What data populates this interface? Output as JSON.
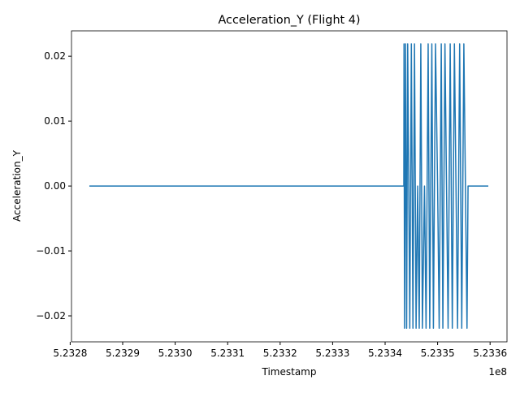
{
  "chart_data": {
    "type": "line",
    "title": "Acceleration_Y (Flight 4)",
    "x_label": "Timestamp",
    "y_label": "Acceleration_Y",
    "x_offset_label": "1e8",
    "color": "#1f77b4",
    "x": [
      523283650,
      523343560,
      523343600,
      523343700,
      523343900,
      523344100,
      523344300,
      523344500,
      523344700,
      523345000,
      523345300,
      523345600,
      523345900,
      523346200,
      523346500,
      523346800,
      523347100,
      523347500,
      523347800,
      523348200,
      523348500,
      523348900,
      523349200,
      523349600,
      523350000,
      523350300,
      523350700,
      523351000,
      523351400,
      523351700,
      523352000,
      523352400,
      523352800,
      523353200,
      523353500,
      523353800,
      523354200,
      523354600,
      523355000,
      523355300,
      523355600,
      523355800,
      523359660
    ],
    "values": [
      0,
      0,
      0.0219,
      -0.0219,
      0.0219,
      -0.0219,
      0.0219,
      0,
      -0.0219,
      0.0219,
      -0.0219,
      0.0219,
      -0.0219,
      0,
      -0.0219,
      0.0219,
      -0.0219,
      0,
      -0.0219,
      0.0219,
      -0.0219,
      0.0219,
      -0.0219,
      0.0219,
      0,
      -0.0219,
      0.0219,
      -0.0219,
      0.0219,
      0,
      -0.0219,
      0.0219,
      -0.0219,
      0.0219,
      0,
      -0.0219,
      0.0219,
      -0.0219,
      0.0219,
      0,
      -0.0219,
      0,
      0
    ],
    "xlim": [
      523280250,
      523363220
    ],
    "ylim": [
      -0.024,
      0.0239
    ],
    "xticks": [
      {
        "value": 523280000,
        "label": "5.2328"
      },
      {
        "value": 523290000,
        "label": "5.2329"
      },
      {
        "value": 523300000,
        "label": "5.2330"
      },
      {
        "value": 523310000,
        "label": "5.2331"
      },
      {
        "value": 523320000,
        "label": "5.2332"
      },
      {
        "value": 523330000,
        "label": "5.2333"
      },
      {
        "value": 523340000,
        "label": "5.2334"
      },
      {
        "value": 523350000,
        "label": "5.2335"
      },
      {
        "value": 523360000,
        "label": "5.2336"
      }
    ],
    "yticks": [
      {
        "value": -0.02,
        "label": "−0.02"
      },
      {
        "value": -0.01,
        "label": "−0.01"
      },
      {
        "value": 0,
        "label": "0.00"
      },
      {
        "value": 0.01,
        "label": "0.01"
      },
      {
        "value": 0.02,
        "label": "0.02"
      }
    ]
  }
}
